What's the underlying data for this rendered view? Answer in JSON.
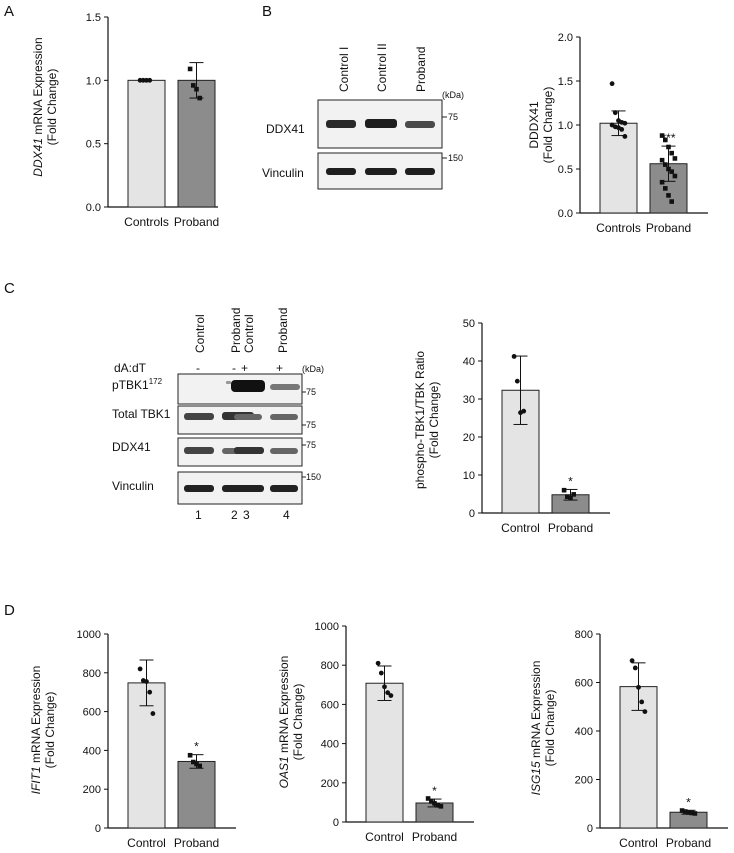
{
  "figure": {
    "panel_a": {
      "letter": "A"
    },
    "panel_b": {
      "letter": "B",
      "lanes": [
        "Control I",
        "Control II",
        "Proband"
      ],
      "kda_unit": "(kDa)",
      "blots": [
        {
          "label": "DDX41",
          "marker": "75"
        },
        {
          "label": "Vinculin",
          "marker": "150"
        }
      ]
    },
    "panel_c": {
      "letter": "C",
      "lanes": [
        "Control",
        "Proband",
        "Control",
        "Proband"
      ],
      "treatment_label": "dA:dT",
      "treatment": [
        "-",
        "-",
        "+",
        "+"
      ],
      "kda_unit": "(kDa)",
      "blots": [
        {
          "label": "pTBK1",
          "label_sup": "172",
          "marker": "75"
        },
        {
          "label": "Total TBK1",
          "marker": "75"
        },
        {
          "label": "DDX41",
          "marker": "75"
        },
        {
          "label": "Vinculin",
          "marker": "150"
        }
      ],
      "lane_numbers": [
        "1",
        "2",
        "3",
        "4"
      ]
    },
    "panel_d": {
      "letter": "D"
    }
  },
  "chart_data": [
    {
      "id": "A",
      "type": "bar",
      "ylabel_gene": "DDX41",
      "ylabel_rest": " mRNA Expression",
      "ylabel2": "(Fold Change)",
      "categories": [
        "Controls",
        "Proband"
      ],
      "values": [
        1.0,
        1.0
      ],
      "errors": [
        0.0,
        0.14
      ],
      "points": [
        [
          1.0,
          1.0,
          1.0,
          1.0
        ],
        [
          1.09,
          0.96,
          0.93,
          0.86
        ]
      ],
      "ylim": [
        0,
        1.5
      ],
      "yticks": [
        "0.0",
        "0.5",
        "1.0",
        "1.5"
      ],
      "significance": [
        "",
        ""
      ]
    },
    {
      "id": "B",
      "type": "bar",
      "ylabel_gene": "",
      "ylabel_rest": "DDDX41",
      "ylabel2": "(Fold Change)",
      "categories": [
        "Controls",
        "Proband"
      ],
      "values": [
        1.02,
        0.56
      ],
      "errors": [
        0.14,
        0.2
      ],
      "points": [
        [
          1.47,
          1.14,
          1.05,
          1.03,
          1.02,
          1.0,
          0.98,
          0.97,
          0.95,
          0.87
        ],
        [
          0.88,
          0.83,
          0.75,
          0.68,
          0.62,
          0.6,
          0.55,
          0.5,
          0.47,
          0.42,
          0.35,
          0.28,
          0.2,
          0.13
        ]
      ],
      "ylim": [
        0,
        2.0
      ],
      "yticks": [
        "0.0",
        "0.5",
        "1.0",
        "1.5",
        "2.0"
      ],
      "significance": [
        "",
        "***"
      ]
    },
    {
      "id": "C",
      "type": "bar",
      "ylabel_gene": "",
      "ylabel_rest": "phospho-TBK1/TBK Ratio",
      "ylabel2": "(Fold Change)",
      "categories": [
        "Control",
        "Proband"
      ],
      "values": [
        32.3,
        4.8
      ],
      "errors": [
        9.0,
        1.4
      ],
      "points": [
        [
          41.2,
          34.7,
          26.4,
          26.8
        ],
        [
          6.0,
          4.3,
          3.9,
          4.9
        ]
      ],
      "ylim": [
        0,
        50
      ],
      "yticks": [
        "0",
        "10",
        "20",
        "30",
        "40",
        "50"
      ],
      "significance": [
        "",
        "*"
      ]
    },
    {
      "id": "D1",
      "type": "bar",
      "ylabel_gene": "IFIT1",
      "ylabel_rest": " mRNA Expression",
      "ylabel2": "(Fold Change)",
      "categories": [
        "Control",
        "Proband"
      ],
      "values": [
        748,
        343
      ],
      "errors": [
        118,
        35
      ],
      "points": [
        [
          820,
          760,
          755,
          700,
          590
        ],
        [
          375,
          340,
          330,
          320
        ]
      ],
      "ylim": [
        0,
        1000
      ],
      "yticks": [
        "0",
        "200",
        "400",
        "600",
        "800",
        "1000"
      ],
      "significance": [
        "",
        "*"
      ]
    },
    {
      "id": "D2",
      "type": "bar",
      "ylabel_gene": "OAS1",
      "ylabel_rest": " mRNA Expression",
      "ylabel2": "(Fold Change)",
      "categories": [
        "Control",
        "Proband"
      ],
      "values": [
        708,
        97
      ],
      "errors": [
        88,
        20
      ],
      "points": [
        [
          810,
          760,
          690,
          660,
          645
        ],
        [
          120,
          105,
          95,
          85,
          80
        ]
      ],
      "ylim": [
        0,
        1000
      ],
      "yticks": [
        "0",
        "200",
        "400",
        "600",
        "800",
        "1000"
      ],
      "significance": [
        "",
        "*"
      ]
    },
    {
      "id": "D3",
      "type": "bar",
      "ylabel_gene": "ISG15",
      "ylabel_rest": " mRNA Expression",
      "ylabel2": "(Fold Change)",
      "categories": [
        "Control",
        "Proband"
      ],
      "values": [
        583,
        65
      ],
      "errors": [
        98,
        8
      ],
      "points": [
        [
          690,
          660,
          580,
          520,
          480
        ],
        [
          72,
          68,
          64,
          62,
          60
        ]
      ],
      "ylim": [
        0,
        800
      ],
      "yticks": [
        "0",
        "200",
        "400",
        "600",
        "800"
      ],
      "significance": [
        "",
        "*"
      ]
    }
  ]
}
